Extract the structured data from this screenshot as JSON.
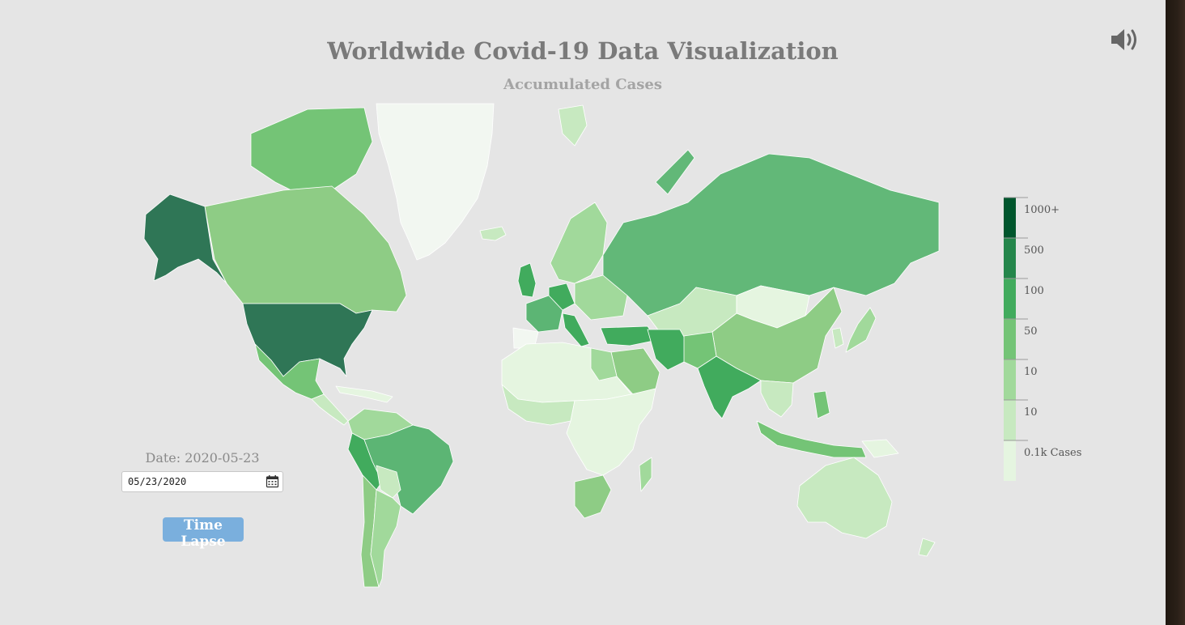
{
  "title": "Worldwide Covid-19 Data Visualization",
  "subtitle": "Accumulated Cases",
  "icons": {
    "sound": "speaker-volume-icon",
    "calendar": "calendar-icon"
  },
  "controls": {
    "date_label": "Date: 2020-05-23",
    "date_value": "05/23/2020",
    "time_lapse_label": "Time Lapse"
  },
  "legend": {
    "items": [
      {
        "label": "1000+",
        "color": "#00562d"
      },
      {
        "label": "500",
        "color": "#24864b"
      },
      {
        "label": "100",
        "color": "#41ab5d"
      },
      {
        "label": "50",
        "color": "#74c476"
      },
      {
        "label": "10",
        "color": "#a1d99b"
      },
      {
        "label": "10",
        "color": "#c7e9c0"
      },
      {
        "label": "0.1k Cases",
        "color": "#e5f5e0"
      }
    ]
  },
  "colors": {
    "background": "#e5e5e5",
    "country_border": "#ffffff",
    "button": "#7aafdd",
    "title": "#7a7a7a",
    "subtitle": "#a4a4a4"
  }
}
